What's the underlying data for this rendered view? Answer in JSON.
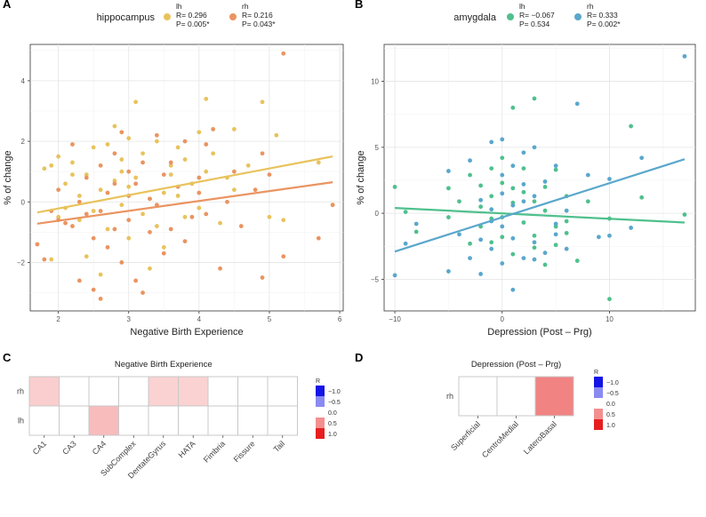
{
  "chart_data": [
    {
      "panel": "A",
      "type": "scatter",
      "xlabel": "Negative Birth Experience",
      "ylabel": "% of change",
      "xlim": [
        1.6,
        6.05
      ],
      "ylim": [
        -3.6,
        5.2
      ],
      "xticks": [
        2,
        3,
        4,
        5,
        6
      ],
      "yticks": [
        -2,
        0,
        2,
        4
      ],
      "grid": true,
      "legend": {
        "title": "hippocampus",
        "position": "top",
        "entries": [
          {
            "name": "lh",
            "stat": "R= 0.296",
            "p": "P= 0.005*",
            "color": "#e8c35c"
          },
          {
            "name": "rh",
            "stat": "R= 0.216",
            "p": "P= 0.043*",
            "color": "#ea9461"
          }
        ]
      },
      "series": [
        {
          "name": "lh",
          "color": "#e8c35c",
          "fit": {
            "x": [
              1.7,
              5.9
            ],
            "y": [
              -0.35,
              1.5
            ]
          },
          "points": [
            [
              1.8,
              1.1
            ],
            [
              1.9,
              1.2
            ],
            [
              2.0,
              1.5
            ],
            [
              2.1,
              0.6
            ],
            [
              2.2,
              1.3
            ],
            [
              2.3,
              0.2
            ],
            [
              2.3,
              -0.6
            ],
            [
              2.4,
              0.9
            ],
            [
              2.5,
              1.8
            ],
            [
              2.5,
              -0.3
            ],
            [
              2.6,
              0.4
            ],
            [
              2.7,
              1.9
            ],
            [
              2.7,
              -0.9
            ],
            [
              2.8,
              2.5
            ],
            [
              2.8,
              0.7
            ],
            [
              2.9,
              -0.1
            ],
            [
              2.9,
              1.4
            ],
            [
              3.0,
              0.5
            ],
            [
              3.0,
              -1.2
            ],
            [
              3.1,
              3.3
            ],
            [
              3.1,
              0.8
            ],
            [
              3.2,
              -0.4
            ],
            [
              3.2,
              1.6
            ],
            [
              3.3,
              0.1
            ],
            [
              3.4,
              -0.8
            ],
            [
              3.4,
              2.0
            ],
            [
              3.5,
              0.3
            ],
            [
              3.5,
              -1.5
            ],
            [
              3.6,
              0.9
            ],
            [
              3.7,
              1.8
            ],
            [
              3.8,
              -0.5
            ],
            [
              3.9,
              0.6
            ],
            [
              4.0,
              2.3
            ],
            [
              4.0,
              -0.2
            ],
            [
              4.1,
              3.4
            ],
            [
              4.1,
              1.0
            ],
            [
              4.2,
              1.6
            ],
            [
              4.3,
              -0.7
            ],
            [
              4.5,
              2.4
            ],
            [
              4.5,
              0.4
            ],
            [
              4.7,
              1.2
            ],
            [
              4.9,
              3.3
            ],
            [
              5.0,
              -0.5
            ],
            [
              5.1,
              2.2
            ],
            [
              5.2,
              -0.6
            ],
            [
              5.7,
              1.3
            ],
            [
              5.9,
              -0.1
            ],
            [
              2.4,
              -1.8
            ],
            [
              2.6,
              -2.4
            ],
            [
              3.3,
              -2.2
            ],
            [
              1.9,
              -1.9
            ],
            [
              2.0,
              -0.5
            ],
            [
              2.2,
              0.9
            ],
            [
              3.6,
              1.2
            ],
            [
              2.9,
              1.0
            ],
            [
              3.0,
              2.1
            ],
            [
              3.7,
              0.2
            ],
            [
              4.4,
              0.8
            ],
            [
              2.1,
              -0.2
            ],
            [
              3.8,
              1.4
            ]
          ]
        },
        {
          "name": "rh",
          "color": "#ea9461",
          "fit": {
            "x": [
              1.7,
              5.9
            ],
            "y": [
              -0.72,
              0.65
            ]
          },
          "points": [
            [
              1.7,
              -1.4
            ],
            [
              1.8,
              -1.9
            ],
            [
              1.9,
              -0.3
            ],
            [
              2.0,
              0.4
            ],
            [
              2.1,
              -0.7
            ],
            [
              2.2,
              1.9
            ],
            [
              2.3,
              -2.6
            ],
            [
              2.3,
              0.0
            ],
            [
              2.4,
              -0.4
            ],
            [
              2.4,
              0.8
            ],
            [
              2.5,
              -1.2
            ],
            [
              2.5,
              -2.9
            ],
            [
              2.6,
              1.2
            ],
            [
              2.6,
              -3.2
            ],
            [
              2.7,
              0.3
            ],
            [
              2.7,
              -1.5
            ],
            [
              2.8,
              1.6
            ],
            [
              2.8,
              -0.9
            ],
            [
              2.9,
              2.3
            ],
            [
              2.9,
              -2.0
            ],
            [
              3.0,
              -0.6
            ],
            [
              3.0,
              1.0
            ],
            [
              3.1,
              -2.6
            ],
            [
              3.1,
              0.6
            ],
            [
              3.2,
              -3.0
            ],
            [
              3.2,
              1.3
            ],
            [
              3.3,
              -1.0
            ],
            [
              3.4,
              -0.1
            ],
            [
              3.4,
              2.2
            ],
            [
              3.5,
              -1.7
            ],
            [
              3.5,
              0.9
            ],
            [
              3.6,
              -0.9
            ],
            [
              3.7,
              0.5
            ],
            [
              3.8,
              -1.3
            ],
            [
              3.8,
              2.0
            ],
            [
              3.9,
              -0.5
            ],
            [
              4.0,
              0.8
            ],
            [
              4.1,
              1.9
            ],
            [
              4.1,
              -0.4
            ],
            [
              4.2,
              2.4
            ],
            [
              4.3,
              -2.2
            ],
            [
              4.4,
              0.0
            ],
            [
              4.5,
              1.0
            ],
            [
              4.6,
              -0.8
            ],
            [
              4.8,
              0.4
            ],
            [
              4.9,
              1.6
            ],
            [
              4.9,
              -2.5
            ],
            [
              5.0,
              0.9
            ],
            [
              5.2,
              4.9
            ],
            [
              5.2,
              -1.8
            ],
            [
              5.7,
              -1.2
            ],
            [
              5.9,
              -0.1
            ],
            [
              2.0,
              -0.6
            ],
            [
              2.2,
              -0.8
            ],
            [
              2.6,
              -0.3
            ],
            [
              3.0,
              0.2
            ],
            [
              3.3,
              0.1
            ],
            [
              3.6,
              1.3
            ],
            [
              4.0,
              0.3
            ],
            [
              2.8,
              0.6
            ]
          ]
        }
      ]
    },
    {
      "panel": "B",
      "type": "scatter",
      "xlabel": "Depression (Post – Prg)",
      "ylabel": "% of change",
      "xlim": [
        -11,
        18
      ],
      "ylim": [
        -7.4,
        12.8
      ],
      "xticks": [
        -10,
        0,
        10
      ],
      "yticks": [
        -5,
        0,
        5,
        10
      ],
      "grid": true,
      "legend": {
        "title": "amygdala",
        "position": "top",
        "entries": [
          {
            "name": "lh",
            "stat": "R= −0.067",
            "p": "P= 0.534",
            "color": "#4fc08d"
          },
          {
            "name": "rh",
            "stat": "R= 0.333",
            "p": "P= 0.002*",
            "color": "#5aa7cc"
          }
        ]
      },
      "series": [
        {
          "name": "lh",
          "color": "#4fc08d",
          "fit": {
            "x": [
              -10,
              17
            ],
            "y": [
              0.4,
              -0.7
            ]
          },
          "points": [
            [
              -10,
              2.0
            ],
            [
              -9,
              0.1
            ],
            [
              -8,
              -1.4
            ],
            [
              -5,
              -0.3
            ],
            [
              -5,
              1.9
            ],
            [
              -3,
              -2.3
            ],
            [
              -3,
              2.9
            ],
            [
              -2,
              0.5
            ],
            [
              -2,
              -1.0
            ],
            [
              -1,
              3.4
            ],
            [
              -1,
              -2.2
            ],
            [
              -1,
              1.3
            ],
            [
              0,
              4.2
            ],
            [
              0,
              -0.3
            ],
            [
              0,
              2.3
            ],
            [
              0,
              -1.8
            ],
            [
              1,
              8.0
            ],
            [
              1,
              0.8
            ],
            [
              1,
              -3.1
            ],
            [
              2,
              3.4
            ],
            [
              2,
              -0.7
            ],
            [
              2,
              1.6
            ],
            [
              3,
              8.7
            ],
            [
              3,
              -1.7
            ],
            [
              3,
              0.9
            ],
            [
              4,
              2.0
            ],
            [
              4,
              -3.9
            ],
            [
              4,
              0.2
            ],
            [
              5,
              -1.0
            ],
            [
              5,
              3.3
            ],
            [
              5,
              -2.4
            ],
            [
              6,
              1.3
            ],
            [
              6,
              -0.6
            ],
            [
              7,
              -3.6
            ],
            [
              8,
              0.9
            ],
            [
              10,
              -6.5
            ],
            [
              10,
              -0.4
            ],
            [
              12,
              6.6
            ],
            [
              13,
              1.2
            ],
            [
              17,
              -0.1
            ],
            [
              -4,
              0.9
            ],
            [
              -1,
              -0.4
            ],
            [
              1,
              1.9
            ],
            [
              3,
              -2.6
            ],
            [
              6,
              -1.5
            ],
            [
              -2,
              2.1
            ]
          ]
        },
        {
          "name": "rh",
          "color": "#5aa7cc",
          "fit": {
            "x": [
              -10,
              17
            ],
            "y": [
              -2.9,
              4.1
            ]
          },
          "points": [
            [
              -10,
              -4.7
            ],
            [
              -9,
              -2.3
            ],
            [
              -8,
              -0.8
            ],
            [
              -5,
              -4.4
            ],
            [
              -5,
              3.2
            ],
            [
              -3,
              -3.4
            ],
            [
              -3,
              4.0
            ],
            [
              -2,
              -4.6
            ],
            [
              -2,
              1.0
            ],
            [
              -1,
              -2.7
            ],
            [
              -1,
              5.4
            ],
            [
              -1,
              0.3
            ],
            [
              0,
              5.6
            ],
            [
              0,
              -3.8
            ],
            [
              0,
              2.9
            ],
            [
              0,
              -1.0
            ],
            [
              1,
              -5.8
            ],
            [
              1,
              3.6
            ],
            [
              1,
              -1.9
            ],
            [
              2,
              4.6
            ],
            [
              2,
              -3.4
            ],
            [
              2,
              0.9
            ],
            [
              3,
              5.0
            ],
            [
              3,
              -2.2
            ],
            [
              3,
              1.3
            ],
            [
              4,
              -3.0
            ],
            [
              4,
              2.4
            ],
            [
              5,
              -0.8
            ],
            [
              5,
              3.6
            ],
            [
              6,
              -2.7
            ],
            [
              6,
              0.2
            ],
            [
              7,
              8.3
            ],
            [
              8,
              2.9
            ],
            [
              9,
              -1.8
            ],
            [
              10,
              2.6
            ],
            [
              10,
              -1.7
            ],
            [
              12,
              -1.1
            ],
            [
              13,
              4.2
            ],
            [
              17,
              11.9
            ],
            [
              -4,
              -1.6
            ],
            [
              -1,
              -0.6
            ],
            [
              1,
              0.6
            ],
            [
              3,
              -3.5
            ],
            [
              5,
              -1.6
            ],
            [
              2,
              2.2
            ],
            [
              -2,
              -2.0
            ],
            [
              0,
              1.5
            ]
          ]
        }
      ]
    },
    {
      "panel": "C",
      "type": "heatmap",
      "title": "Negative Birth Experience",
      "rows": [
        "rh",
        "lh"
      ],
      "columns": [
        "CA1",
        "CA3",
        "CA4",
        "SubComplex",
        "DentateGyrus",
        "HATA",
        "Fimbria",
        "Fissure",
        "Tail"
      ],
      "values": [
        [
          0.22,
          0.0,
          0.0,
          0.0,
          0.2,
          0.2,
          0.0,
          0.0,
          0.0
        ],
        [
          0.0,
          0.0,
          0.3,
          0.0,
          0.0,
          0.0,
          0.0,
          0.0,
          0.0
        ]
      ],
      "colorbar": {
        "title": "R",
        "labels": [
          "−1.0",
          "−0.5",
          "0.0",
          "0.5",
          "1.0"
        ],
        "range": [
          -1,
          1
        ]
      }
    },
    {
      "panel": "D",
      "type": "heatmap",
      "title": "Depression (Post – Prg)",
      "rows": [
        "rh"
      ],
      "columns": [
        "Superficial",
        "CentroMedial",
        "LateroBasal"
      ],
      "values": [
        [
          0.0,
          0.0,
          0.55
        ]
      ],
      "colorbar": {
        "title": "R",
        "labels": [
          "−1.0",
          "−0.5",
          "0.0",
          "0.5",
          "1.0"
        ],
        "range": [
          -1,
          1
        ]
      }
    }
  ]
}
